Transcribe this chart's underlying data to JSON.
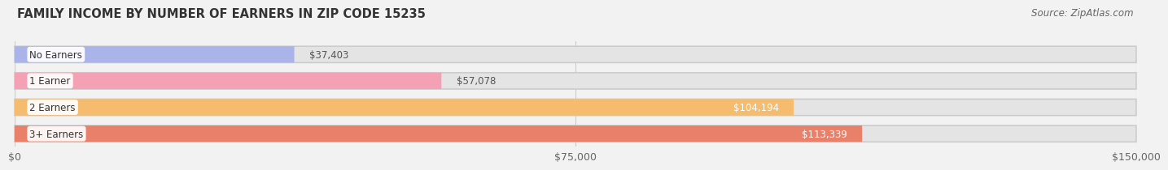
{
  "title": "FAMILY INCOME BY NUMBER OF EARNERS IN ZIP CODE 15235",
  "source": "Source: ZipAtlas.com",
  "categories": [
    "No Earners",
    "1 Earner",
    "2 Earners",
    "3+ Earners"
  ],
  "values": [
    37403,
    57078,
    104194,
    113339
  ],
  "bar_colors": [
    "#aab4e8",
    "#f4a0b5",
    "#f5bc6e",
    "#e8806a"
  ],
  "bar_labels": [
    "$37,403",
    "$57,078",
    "$104,194",
    "$113,339"
  ],
  "label_inside": [
    false,
    false,
    true,
    true
  ],
  "xlim": [
    0,
    150000
  ],
  "xticks": [
    0,
    75000,
    150000
  ],
  "xtick_labels": [
    "$0",
    "$75,000",
    "$150,000"
  ],
  "bg_color": "#f2f2f2",
  "bar_bg_color": "#e4e4e4",
  "title_fontsize": 10.5,
  "source_fontsize": 8.5,
  "bar_height": 0.62,
  "fig_width": 14.06,
  "fig_height": 2.33
}
